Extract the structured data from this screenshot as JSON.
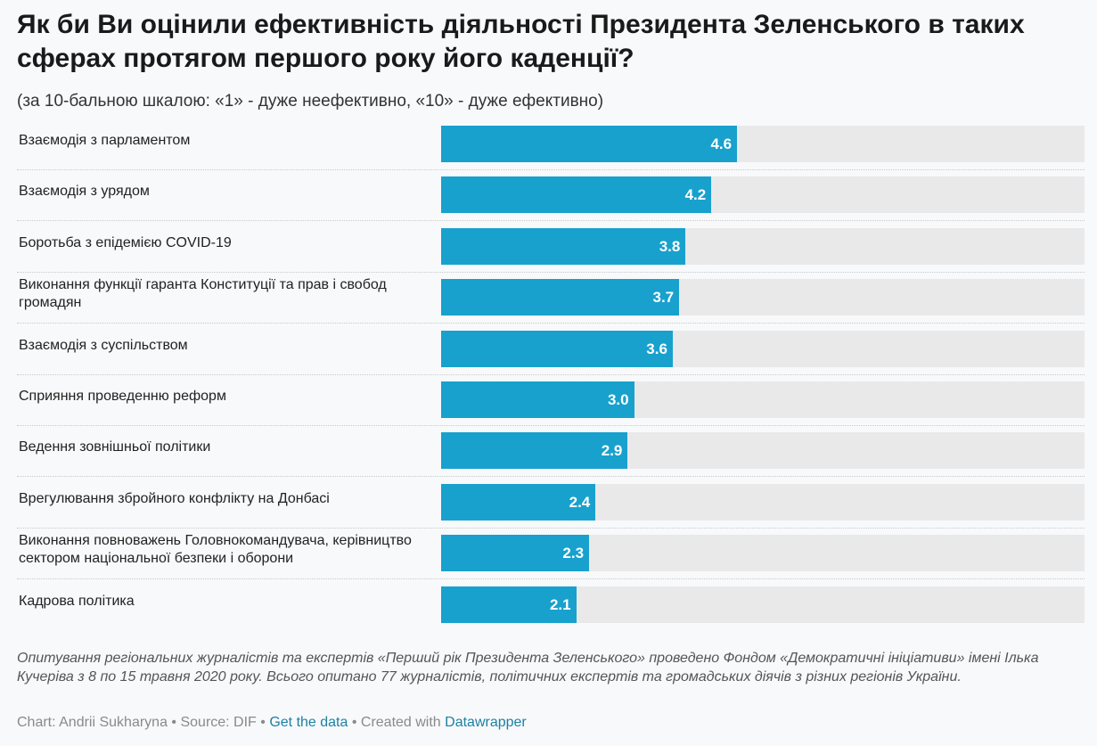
{
  "chart_data": {
    "type": "bar",
    "orientation": "horizontal",
    "title": "Як би Ви оцінили ефективність діяльності Президента Зеленського в таких сферах протягом першого року його каденції?",
    "subtitle": "(за 10-бальною шкалою: «1» - дуже неефективно, «10» - дуже ефективно)",
    "categories": [
      "Взаємодія з парламентом",
      "Взаємодія з урядом",
      "Боротьба з епідемією COVID-19",
      "Виконання функції гаранта Конституції та прав і свобод громадян",
      "Взаємодія з суспільством",
      "Сприяння проведенню реформ",
      "Ведення зовнішньої політики",
      "Врегулювання збройного конфлікту на Донбасі",
      "Виконання повноважень Головнокомандувача, керівництво сектором національної безпеки і оборони",
      "Кадрова політика"
    ],
    "values": [
      4.6,
      4.2,
      3.8,
      3.7,
      3.6,
      3.0,
      2.9,
      2.4,
      2.3,
      2.1
    ],
    "value_labels": [
      "4.6",
      "4.2",
      "3.8",
      "3.7",
      "3.6",
      "3.0",
      "2.9",
      "2.4",
      "2.3",
      "2.1"
    ],
    "xlim": [
      0,
      10
    ],
    "bar_color": "#18a1cd",
    "track_color": "#e9e9ea",
    "grid": false
  },
  "notes": "Опитування регіональних журналістів та експертів «Перший рік Президента Зеленського» проведено Фондом «Демократичні ініціативи» імені Ілька Кучеріва з 8 по 15 травня 2020 року. Всього опитано 77 журналістів, політичних експертів та громадських діячів з різних регіонів України.",
  "footer": {
    "credit": "Chart: Andrii Sukharyna • Source: DIF • ",
    "data_link": "Get the data",
    "separator": " • Created with ",
    "tool_link": "Datawrapper"
  }
}
